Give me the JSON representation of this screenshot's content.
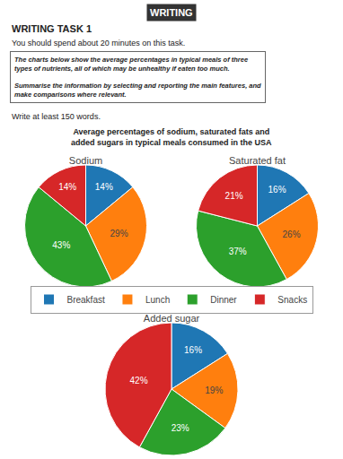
{
  "title": [
    "Average percentages of sodium, saturated fats and",
    "added sugars in typical meals consumed in the USA"
  ],
  "annotations": [
    "WRITING",
    "WRITING TASK 1",
    "You should spend about 20 minutes on this task.",
    [
      [
        "The charts below show the average percentages in typical meals of three",
        "types of nutrients, all of which may be unhealthy if eaten too much."
      ],
      [
        "Summarise the information by selecting and reporting the main features, and",
        "make comparisons where relevant."
      ]
    ],
    "Write at least 150 words."
  ],
  "chart_data": [
    {
      "type": "pie",
      "title": "Sodium",
      "categories": [
        "Breakfast",
        "Lunch",
        "Dinner",
        "Snacks"
      ],
      "values": [
        14,
        29,
        43,
        14
      ],
      "value_labels": [
        "14%",
        "29%",
        "43%",
        "14%"
      ],
      "data_labels": true,
      "legend": "center"
    },
    {
      "type": "pie",
      "title": "Saturated fat",
      "categories": [
        "Breakfast",
        "Lunch",
        "Dinner",
        "Snacks"
      ],
      "values": [
        16,
        26,
        37,
        21
      ],
      "value_labels": [
        "16%",
        "26%",
        "37%",
        "21%"
      ],
      "data_labels": true,
      "legend": "center"
    },
    {
      "type": "pie",
      "title": "Added sugar",
      "categories": [
        "Breakfast",
        "Lunch",
        "Dinner",
        "Snacks"
      ],
      "values": [
        16,
        19,
        23,
        42
      ],
      "value_labels": [
        "16%",
        "19%",
        "23%",
        "42%"
      ],
      "data_labels": true,
      "legend": "center"
    }
  ]
}
